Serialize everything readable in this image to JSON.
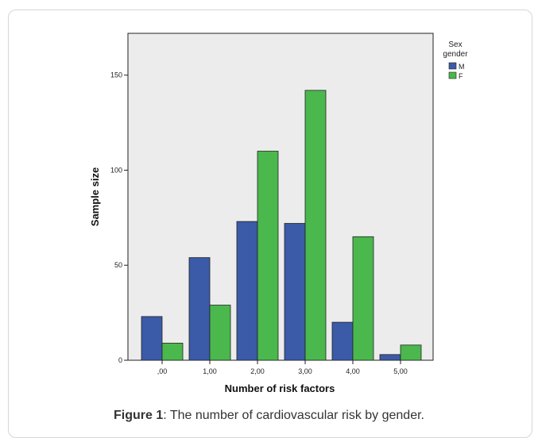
{
  "chart_data": {
    "type": "bar",
    "categories": [
      ",00",
      "1,00",
      "2,00",
      "3,00",
      "4,00",
      "5,00"
    ],
    "series": [
      {
        "name": "M",
        "values": [
          23,
          54,
          73,
          72,
          20,
          3
        ],
        "color": "#3b5aa8"
      },
      {
        "name": "F",
        "values": [
          9,
          29,
          110,
          142,
          65,
          8
        ],
        "color": "#4ab84d"
      }
    ],
    "xlabel": "Number of risk factors",
    "ylabel": "Sample size",
    "ylim": [
      0,
      172
    ],
    "yticks": [
      0,
      50,
      100,
      150
    ],
    "legend": {
      "title_line1": "Sex",
      "title_line2": "gender",
      "placement": "right"
    },
    "grid": false
  },
  "caption": {
    "label": "Figure 1",
    "text": ": The number of cardiovascular risk by gender."
  }
}
